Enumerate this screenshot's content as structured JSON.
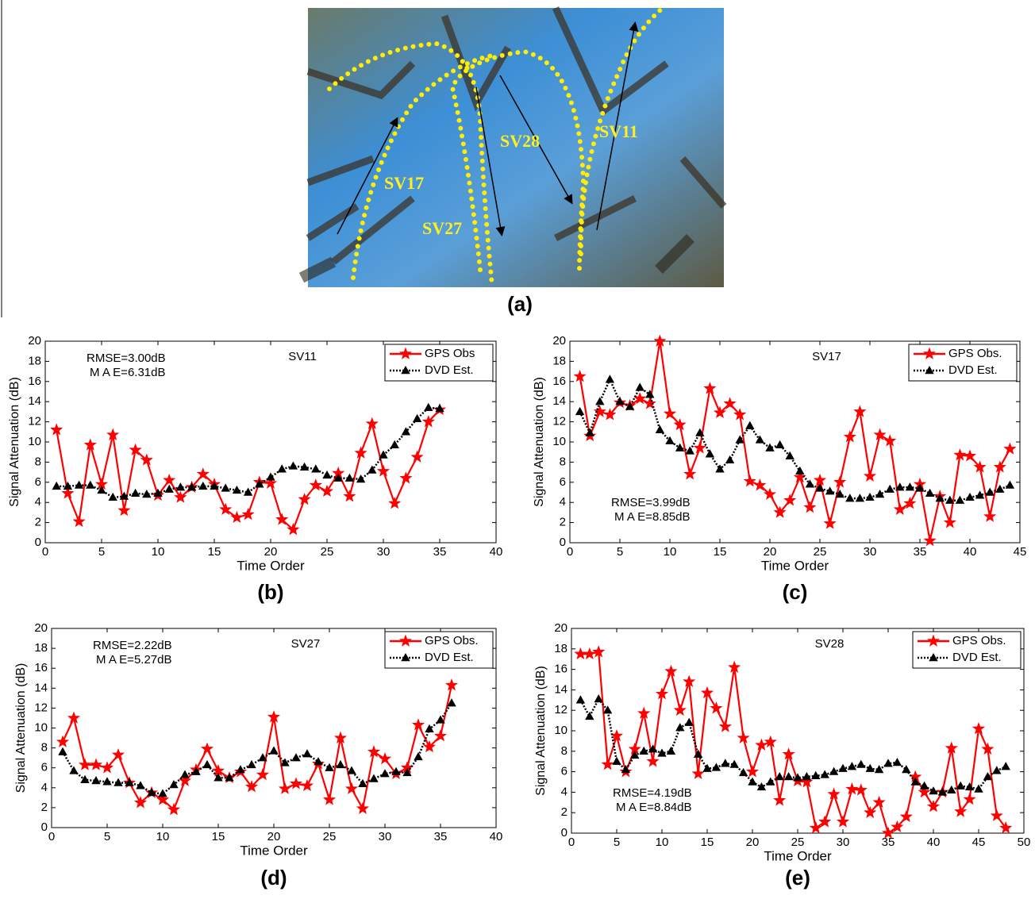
{
  "photo": {
    "labels": [
      "SV11",
      "SV28",
      "SV17",
      "SV27"
    ],
    "caption": "(a)"
  },
  "chart_data": [
    {
      "type": "line",
      "title": "SV11",
      "caption": "(b)",
      "xlabel": "Time Order",
      "ylabel": "Signal Attenuation (dB)",
      "annotations": [
        "RMSE=3.00dB",
        "M A E=6.31dB"
      ],
      "x": [
        1,
        2,
        3,
        4,
        5,
        6,
        7,
        8,
        9,
        10,
        11,
        12,
        13,
        14,
        15,
        16,
        17,
        18,
        19,
        20,
        21,
        22,
        23,
        24,
        25,
        26,
        27,
        28,
        29,
        30,
        31,
        32,
        33,
        34,
        35
      ],
      "xlim": [
        0,
        40
      ],
      "xticks": [
        0,
        5,
        10,
        15,
        20,
        25,
        30,
        35,
        40
      ],
      "ylim": [
        0,
        20
      ],
      "yticks": [
        0,
        2,
        4,
        6,
        8,
        10,
        12,
        14,
        16,
        18,
        20
      ],
      "legend": "upper right",
      "series": [
        {
          "name": "GPS Obs",
          "color": "#ff0000",
          "values": [
            11.2,
            4.9,
            2.1,
            9.7,
            5.8,
            10.7,
            3.2,
            9.2,
            8.2,
            4.7,
            6.2,
            4.5,
            5.5,
            6.8,
            5.8,
            3.3,
            2.5,
            2.8,
            6.0,
            5.9,
            2.3,
            1.3,
            4.3,
            5.7,
            5.1,
            6.9,
            4.6,
            8.9,
            11.8,
            7.1,
            3.9,
            6.4,
            8.5,
            12.0,
            13.2
          ]
        },
        {
          "name": "DVD Est.",
          "color": "#000000",
          "values": [
            5.6,
            5.6,
            5.7,
            5.7,
            5.2,
            4.5,
            4.6,
            4.9,
            4.8,
            4.9,
            5.3,
            5.5,
            5.5,
            5.6,
            5.6,
            5.4,
            5.2,
            5.0,
            5.8,
            6.5,
            7.3,
            7.6,
            7.5,
            7.3,
            6.7,
            6.4,
            6.4,
            6.3,
            7.2,
            8.7,
            9.7,
            11.0,
            12.3,
            13.4,
            13.3
          ]
        }
      ]
    },
    {
      "type": "line",
      "title": "SV17",
      "caption": "(c)",
      "xlabel": "Time Order",
      "ylabel": "Signal Attenuation (dB)",
      "annotations": [
        "RMSE=3.99dB",
        "M A E=8.85dB"
      ],
      "x": [
        1,
        2,
        3,
        4,
        5,
        6,
        7,
        8,
        9,
        10,
        11,
        12,
        13,
        14,
        15,
        16,
        17,
        18,
        19,
        20,
        21,
        22,
        23,
        24,
        25,
        26,
        27,
        28,
        29,
        30,
        31,
        32,
        33,
        34,
        35,
        36,
        37,
        38,
        39,
        40,
        41,
        42,
        43,
        44
      ],
      "xlim": [
        0,
        45
      ],
      "xticks": [
        0,
        5,
        10,
        15,
        20,
        25,
        30,
        35,
        40,
        45
      ],
      "ylim": [
        0,
        20
      ],
      "yticks": [
        0,
        2,
        4,
        6,
        8,
        10,
        12,
        14,
        16,
        18,
        20
      ],
      "legend": "upper right",
      "series": [
        {
          "name": "GPS Obs.",
          "color": "#ff0000",
          "values": [
            16.5,
            10.6,
            13.0,
            12.7,
            13.9,
            13.6,
            14.3,
            13.8,
            20.0,
            12.8,
            11.7,
            6.8,
            9.4,
            15.3,
            12.9,
            13.8,
            12.7,
            6.1,
            5.7,
            4.8,
            3.0,
            4.2,
            6.5,
            3.5,
            6.2,
            1.9,
            6.0,
            10.5,
            13.0,
            6.6,
            10.7,
            10.1,
            3.3,
            3.9,
            5.8,
            0.2,
            4.6,
            2.0,
            8.7,
            8.6,
            7.5,
            2.6,
            7.5,
            9.3
          ]
        },
        {
          "name": "DVD Est.",
          "color": "#000000",
          "values": [
            13.0,
            10.9,
            14.0,
            16.2,
            14.0,
            13.5,
            15.4,
            14.7,
            11.2,
            10.1,
            9.4,
            9.1,
            10.9,
            8.8,
            7.3,
            8.2,
            10.2,
            11.6,
            10.2,
            9.4,
            9.7,
            8.6,
            7.1,
            5.8,
            5.4,
            5.1,
            4.8,
            4.4,
            4.4,
            4.5,
            4.8,
            5.3,
            5.5,
            5.5,
            5.4,
            4.9,
            4.4,
            4.2,
            4.2,
            4.5,
            4.7,
            5.0,
            5.3,
            5.7
          ]
        }
      ]
    },
    {
      "type": "line",
      "title": "SV27",
      "caption": "(d)",
      "xlabel": "Time Order",
      "ylabel": "Signal Attenuation (dB)",
      "annotations": [
        "RMSE=2.22dB",
        "M A E=5.27dB"
      ],
      "x": [
        1,
        2,
        3,
        4,
        5,
        6,
        7,
        8,
        9,
        10,
        11,
        12,
        13,
        14,
        15,
        16,
        17,
        18,
        19,
        20,
        21,
        22,
        23,
        24,
        25,
        26,
        27,
        28,
        29,
        30,
        31,
        32,
        33,
        34,
        35,
        36
      ],
      "xlim": [
        0,
        40
      ],
      "xticks": [
        0,
        5,
        10,
        15,
        20,
        25,
        30,
        35,
        40
      ],
      "ylim": [
        0,
        20
      ],
      "yticks": [
        0,
        2,
        4,
        6,
        8,
        10,
        12,
        14,
        16,
        18,
        20
      ],
      "legend": "upper right",
      "series": [
        {
          "name": "GPS Obs.",
          "color": "#ff0000",
          "values": [
            8.6,
            11.0,
            6.3,
            6.3,
            6.0,
            7.3,
            4.5,
            2.5,
            3.5,
            2.8,
            1.8,
            4.7,
            5.8,
            7.9,
            5.7,
            5.0,
            5.6,
            4.1,
            5.3,
            11.1,
            3.9,
            4.4,
            4.2,
            6.4,
            2.8,
            9.0,
            3.9,
            1.9,
            7.6,
            6.9,
            5.4,
            6.0,
            10.3,
            8.1,
            9.2,
            14.3
          ]
        },
        {
          "name": "DVD Est.",
          "color": "#000000",
          "values": [
            7.6,
            5.7,
            4.8,
            4.7,
            4.6,
            4.5,
            4.5,
            4.2,
            3.5,
            3.4,
            4.3,
            5.3,
            5.6,
            6.3,
            5.0,
            5.0,
            5.8,
            6.3,
            7.0,
            7.7,
            6.5,
            7.0,
            7.4,
            6.6,
            6.0,
            6.3,
            5.7,
            4.4,
            4.9,
            5.4,
            5.6,
            5.5,
            7.1,
            9.9,
            10.8,
            12.5
          ]
        }
      ]
    },
    {
      "type": "line",
      "title": "SV28",
      "caption": "(e)",
      "xlabel": "Time Order",
      "ylabel": "Signal Attenuation (dB)",
      "annotations": [
        "RMSE=4.19dB",
        "M A E=8.84dB"
      ],
      "x": [
        1,
        2,
        3,
        4,
        5,
        6,
        7,
        8,
        9,
        10,
        11,
        12,
        13,
        14,
        15,
        16,
        17,
        18,
        19,
        20,
        21,
        22,
        23,
        24,
        25,
        26,
        27,
        28,
        29,
        30,
        31,
        32,
        33,
        34,
        35,
        36,
        37,
        38,
        39,
        40,
        41,
        42,
        43,
        44,
        45,
        46,
        47,
        48
      ],
      "xlim": [
        0,
        50
      ],
      "xticks": [
        0,
        5,
        10,
        15,
        20,
        25,
        30,
        35,
        40,
        45,
        50
      ],
      "ylim": [
        0,
        20
      ],
      "yticks": [
        0,
        2,
        4,
        6,
        8,
        10,
        12,
        14,
        16,
        18,
        20
      ],
      "legend": "upper right",
      "series": [
        {
          "name": "GPS Obs.",
          "color": "#ff0000",
          "values": [
            17.5,
            17.5,
            17.7,
            6.7,
            9.5,
            6.0,
            8.2,
            11.7,
            7.0,
            13.6,
            15.8,
            12.0,
            14.8,
            5.8,
            13.7,
            12.2,
            10.4,
            16.2,
            9.3,
            6.0,
            8.6,
            8.9,
            3.2,
            7.7,
            5.1,
            5.0,
            0.5,
            1.1,
            3.8,
            1.1,
            4.3,
            4.2,
            2.0,
            3.0,
            0.0,
            0.6,
            1.6,
            5.5,
            4.0,
            2.6,
            4.0,
            8.3,
            2.1,
            3.3,
            10.2,
            8.2,
            1.7,
            0.5
          ]
        },
        {
          "name": "DVD Est.",
          "color": "#000000",
          "values": [
            13.0,
            11.4,
            13.1,
            12.0,
            7.0,
            6.2,
            7.6,
            8.0,
            8.2,
            7.8,
            8.0,
            10.3,
            10.8,
            7.7,
            6.3,
            6.4,
            6.8,
            6.7,
            5.9,
            5.0,
            4.5,
            5.0,
            5.5,
            5.5,
            5.4,
            5.5,
            5.6,
            5.7,
            6.0,
            6.3,
            6.5,
            6.7,
            6.3,
            6.2,
            6.8,
            6.9,
            6.2,
            5.0,
            4.6,
            4.1,
            4.0,
            4.2,
            4.6,
            4.5,
            4.3,
            5.5,
            6.1,
            6.5
          ]
        }
      ]
    }
  ]
}
